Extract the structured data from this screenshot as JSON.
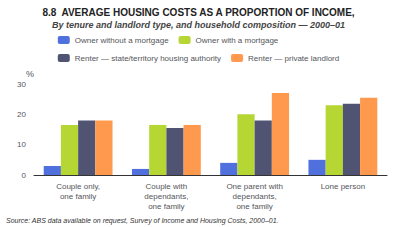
{
  "chart_data": {
    "type": "bar",
    "title": "8.8  AVERAGE HOUSING COSTS AS A PROPORTION OF INCOME,",
    "subtitle": "By tenure and landlord type, and household composition — 2000–01",
    "categories": [
      "Couple only,\none family",
      "Couple with\ndependants,\none family",
      "One parent with\ndependants,\none family",
      "Lone person"
    ],
    "series": [
      {
        "name": "Owner without a mortgage",
        "values": [
          3,
          2,
          4,
          5
        ]
      },
      {
        "name": "Owner with a mortgage",
        "values": [
          16.5,
          16.5,
          20,
          23
        ]
      },
      {
        "name": "Renter — state/territory housing authority",
        "values": [
          18,
          15.5,
          18,
          23.5
        ]
      },
      {
        "name": "Renter — private landlord",
        "values": [
          18,
          16.5,
          27,
          25.5
        ]
      }
    ],
    "ylabel": "%",
    "ylim": [
      0,
      30
    ],
    "yticks": [
      0,
      10,
      20,
      30
    ],
    "grid": false,
    "legend": "top",
    "annotations": [
      "Source: ABS data available on request, Survey of Income and Housing Costs, 2000–01."
    ]
  }
}
